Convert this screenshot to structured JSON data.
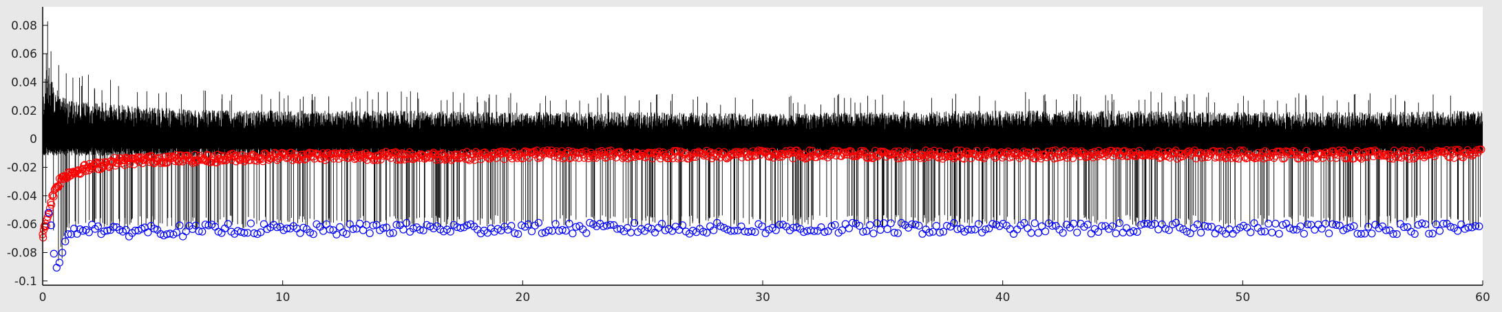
{
  "chart_data": {
    "type": "line",
    "title": "",
    "xlabel": "",
    "ylabel": "",
    "xlim": [
      0,
      60
    ],
    "ylim": [
      -0.1,
      0.09
    ],
    "x_ticks": [
      0,
      10,
      20,
      30,
      40,
      50,
      60
    ],
    "x_tick_labels": [
      "0",
      "10",
      "20",
      "30",
      "40",
      "50",
      "60"
    ],
    "y_ticks": [
      0.08,
      0.06,
      0.04,
      0.02,
      0,
      -0.02,
      -0.04,
      -0.06,
      -0.08,
      -0.1
    ],
    "y_tick_labels": [
      "0.08",
      "0.06",
      "0.04",
      "0.02",
      "0",
      "-0.02",
      "-0.04",
      "-0.06",
      "-0.08",
      "-0.1"
    ],
    "grid": false,
    "legend": "none",
    "series": [
      {
        "role": "signal",
        "style": "line",
        "color": "#000000",
        "description_of_values": "dense black trace centered near 0 with positive excursions up to about 0.02-0.04 and frequent spikes down to about -0.06",
        "x": [
          0,
          0.2,
          0.4,
          0.6,
          0.8,
          1,
          1.5,
          2,
          3,
          4,
          5,
          6,
          8,
          10,
          15,
          20,
          25,
          30,
          35,
          40,
          45,
          50,
          55,
          60
        ],
        "upper_envelope": [
          0.03,
          0.055,
          0.04,
          0.035,
          0.03,
          0.028,
          0.026,
          0.027,
          0.025,
          0.023,
          0.022,
          0.021,
          0.02,
          0.02,
          0.02,
          0.019,
          0.019,
          0.018,
          0.019,
          0.02,
          0.02,
          0.019,
          0.019,
          0.02
        ],
        "peak_values": [
          0.06,
          0.04,
          0.03
        ]
      },
      {
        "role": "peak-markers",
        "style": "circle",
        "color": "#ff0000",
        "x": [
          0,
          0.1,
          0.2,
          0.3,
          0.4,
          0.5,
          0.7,
          1,
          1.5,
          2,
          2.5,
          3,
          4,
          5,
          6,
          7,
          8,
          9,
          10,
          12,
          14,
          16,
          18,
          20,
          22,
          24,
          26,
          28,
          30,
          32,
          34,
          36,
          38,
          40,
          42,
          44,
          46,
          48,
          50,
          52,
          54,
          56,
          58,
          60
        ],
        "y": [
          -0.068,
          -0.062,
          -0.055,
          -0.048,
          -0.042,
          -0.036,
          -0.03,
          -0.025,
          -0.022,
          -0.02,
          -0.018,
          -0.016,
          -0.015,
          -0.014,
          -0.014,
          -0.014,
          -0.013,
          -0.013,
          -0.012,
          -0.012,
          -0.012,
          -0.012,
          -0.012,
          -0.011,
          -0.011,
          -0.011,
          -0.011,
          -0.011,
          -0.011,
          -0.011,
          -0.011,
          -0.011,
          -0.011,
          -0.011,
          -0.011,
          -0.011,
          -0.011,
          -0.011,
          -0.011,
          -0.011,
          -0.011,
          -0.011,
          -0.011,
          -0.01
        ]
      },
      {
        "role": "trough-markers",
        "style": "circle",
        "color": "#0000ff",
        "x": [
          0.3,
          0.5,
          0.6,
          0.8,
          1,
          1.2,
          1.5,
          2,
          3,
          4,
          5,
          6,
          8,
          10,
          12,
          14,
          16,
          18,
          20,
          22,
          24,
          26,
          28,
          30,
          32,
          34,
          36,
          38,
          40,
          42,
          44,
          46,
          48,
          50,
          52,
          54,
          56,
          58,
          60
        ],
        "y": [
          -0.048,
          -0.083,
          -0.088,
          -0.085,
          -0.07,
          -0.065,
          -0.063,
          -0.062,
          -0.066,
          -0.064,
          -0.064,
          -0.065,
          -0.063,
          -0.064,
          -0.064,
          -0.063,
          -0.063,
          -0.063,
          -0.063,
          -0.063,
          -0.063,
          -0.063,
          -0.063,
          -0.063,
          -0.063,
          -0.063,
          -0.063,
          -0.063,
          -0.063,
          -0.063,
          -0.063,
          -0.063,
          -0.063,
          -0.063,
          -0.063,
          -0.063,
          -0.063,
          -0.063,
          -0.063
        ]
      }
    ]
  }
}
